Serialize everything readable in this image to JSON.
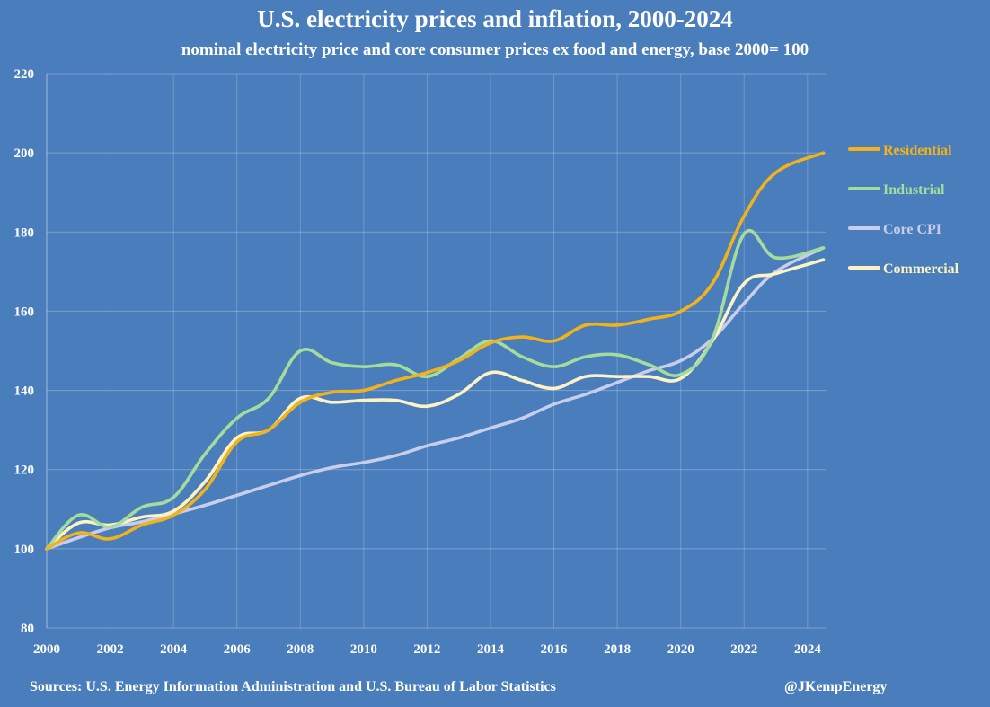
{
  "chart_data": {
    "type": "line",
    "title": "U.S. electricity prices and inflation, 2000-2024",
    "subtitle": "nominal electricity price and core consumer prices ex food and energy, base 2000= 100",
    "ylim": [
      80,
      220
    ],
    "yticks": [
      80,
      100,
      120,
      140,
      160,
      180,
      200,
      220
    ],
    "xlim": [
      2000,
      2024.6
    ],
    "xticks": [
      "2000",
      "2002",
      "2004",
      "2006",
      "2008",
      "2010",
      "2012",
      "2014",
      "2016",
      "2018",
      "2020",
      "2022",
      "2024"
    ],
    "grid": true,
    "legend_position": "right",
    "x": [
      2000,
      2001,
      2002,
      2003,
      2004,
      2005,
      2006,
      2007,
      2008,
      2009,
      2010,
      2011,
      2012,
      2013,
      2014,
      2015,
      2016,
      2017,
      2018,
      2019,
      2020,
      2021,
      2022,
      2023,
      2024.5
    ],
    "series": [
      {
        "name": "Residential",
        "color": "#f2b21a",
        "values": [
          100,
          104,
          102.5,
          106,
          108.5,
          115,
          127,
          130,
          137,
          139.5,
          140,
          142.5,
          144.5,
          147.5,
          152,
          153.5,
          152.5,
          156.5,
          156.5,
          158,
          160,
          167,
          184,
          195,
          200
        ]
      },
      {
        "name": "Industrial",
        "color": "#a3dc9c",
        "values": [
          100,
          108.5,
          105.5,
          110.5,
          113,
          124,
          133,
          138,
          150,
          147,
          146,
          146.5,
          143.5,
          148,
          152.5,
          148.5,
          146,
          148.5,
          149,
          146.5,
          144,
          153,
          179.5,
          173.5,
          176
        ]
      },
      {
        "name": "Core CPI",
        "color": "#c7cdea",
        "values": [
          100,
          102.8,
          105.3,
          106.8,
          108.8,
          111,
          113.5,
          116,
          118.5,
          120.5,
          121.8,
          123.5,
          126,
          128,
          130.5,
          133,
          136.5,
          139,
          142,
          145,
          147.5,
          153,
          162,
          170,
          176
        ]
      },
      {
        "name": "Commercial",
        "color": "#fdf2c4",
        "values": [
          100,
          106.5,
          106,
          108,
          109.5,
          117,
          128,
          130,
          138,
          137,
          137.5,
          137.5,
          136,
          139,
          144.5,
          142.5,
          140.5,
          143.5,
          143.5,
          143.5,
          143,
          152.5,
          167,
          169.5,
          173
        ]
      }
    ]
  },
  "footer": {
    "source": "Sources: U.S. Energy Information Administration and U.S. Bureau of Labor Statistics",
    "handle": "@JKempEnergy"
  }
}
